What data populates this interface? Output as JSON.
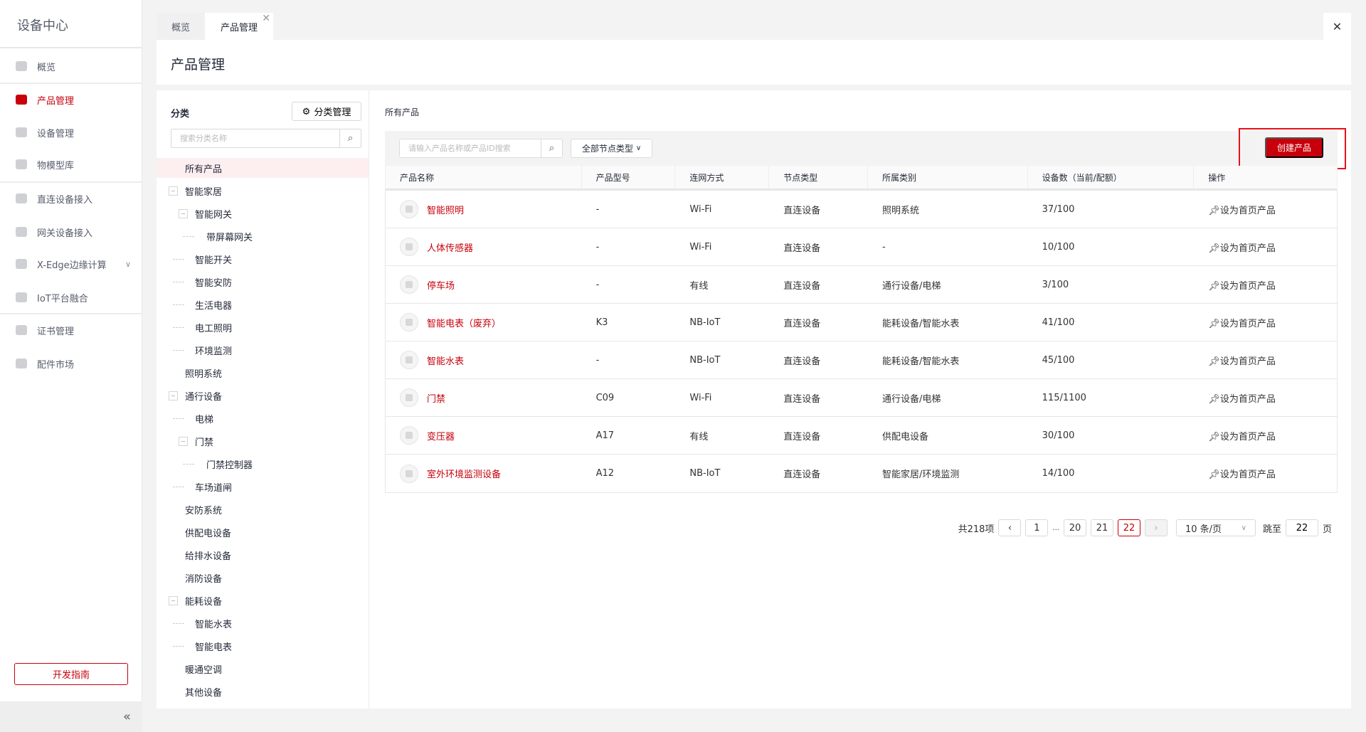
{
  "app": {
    "title": "设备中心"
  },
  "sidebar": {
    "items": [
      {
        "label": "概览",
        "icon": "cube-icon"
      },
      {
        "label": "产品管理",
        "icon": "product-cube-icon",
        "active": true
      },
      {
        "label": "设备管理",
        "icon": "device-icon"
      },
      {
        "label": "物模型库",
        "icon": "model-icon"
      },
      {
        "label": "直连设备接入",
        "icon": "direct-connect-icon"
      },
      {
        "label": "网关设备接入",
        "icon": "gateway-icon"
      },
      {
        "label": "X-Edge边缘计算",
        "icon": "edge-grid-icon",
        "expandable": true
      },
      {
        "label": "IoT平台融合",
        "icon": "monitor-icon"
      },
      {
        "label": "证书管理",
        "icon": "certificate-icon"
      },
      {
        "label": "配件市场",
        "icon": "market-icon"
      }
    ],
    "guide_label": "开发指南",
    "collapse_icon": "«"
  },
  "tabs": [
    {
      "label": "概览"
    },
    {
      "label": "产品管理",
      "closable": true
    }
  ],
  "close_all": "✕",
  "header": {
    "title": "产品管理"
  },
  "category": {
    "title": "分类",
    "manage_label": "分类管理",
    "search_placeholder": "搜索分类名称",
    "tree": [
      {
        "label": "所有产品",
        "level": 0,
        "selected": true
      },
      {
        "label": "智能家居",
        "level": 0,
        "box": true
      },
      {
        "label": "智能网关",
        "level": 1,
        "box": true
      },
      {
        "label": "带屏幕网关",
        "level": 2
      },
      {
        "label": "智能开关",
        "level": 1
      },
      {
        "label": "智能安防",
        "level": 1
      },
      {
        "label": "生活电器",
        "level": 1
      },
      {
        "label": "电工照明",
        "level": 1
      },
      {
        "label": "环境监测",
        "level": 1
      },
      {
        "label": "照明系统",
        "level": 0
      },
      {
        "label": "通行设备",
        "level": 0,
        "box": true
      },
      {
        "label": "电梯",
        "level": 1
      },
      {
        "label": "门禁",
        "level": 1,
        "box": true
      },
      {
        "label": "门禁控制器",
        "level": 2
      },
      {
        "label": "车场道闸",
        "level": 1
      },
      {
        "label": "安防系统",
        "level": 0
      },
      {
        "label": "供配电设备",
        "level": 0
      },
      {
        "label": "给排水设备",
        "level": 0
      },
      {
        "label": "消防设备",
        "level": 0
      },
      {
        "label": "能耗设备",
        "level": 0,
        "box": true
      },
      {
        "label": "智能水表",
        "level": 1
      },
      {
        "label": "智能电表",
        "level": 1
      },
      {
        "label": "暖通空调",
        "level": 0
      },
      {
        "label": "其他设备",
        "level": 0
      }
    ]
  },
  "products": {
    "label": "所有产品",
    "search_placeholder": "请输入产品名称或产品ID搜索",
    "node_type_select": "全部节点类型",
    "create_label": "创建产品",
    "columns": [
      "产品名称",
      "产品型号",
      "连网方式",
      "节点类型",
      "所属类别",
      "设备数（当前/配额）",
      "操作"
    ],
    "rows": [
      [
        "智能照明",
        "-",
        "Wi-Fi",
        "直连设备",
        "照明系统",
        "37/100",
        "设为首页产品"
      ],
      [
        "人体传感器",
        "-",
        "Wi-Fi",
        "直连设备",
        "-",
        "10/100",
        "设为首页产品"
      ],
      [
        "停车场",
        "-",
        "有线",
        "直连设备",
        "通行设备/电梯",
        "3/100",
        "设为首页产品"
      ],
      [
        "智能电表（废弃）",
        "K3",
        "NB-IoT",
        "直连设备",
        "能耗设备/智能水表",
        "41/100",
        "设为首页产品"
      ],
      [
        "智能水表",
        "-",
        "NB-IoT",
        "直连设备",
        "能耗设备/智能水表",
        "45/100",
        "设为首页产品"
      ],
      [
        "门禁",
        "C09",
        "Wi-Fi",
        "直连设备",
        "通行设备/电梯",
        "115/1100",
        "设为首页产品"
      ],
      [
        "变压器",
        "A17",
        "有线",
        "直连设备",
        "供配电设备",
        "30/100",
        "设为首页产品"
      ],
      [
        "室外环境监测设备",
        "A12",
        "NB-IoT",
        "直连设备",
        "智能家居/环境监测",
        "14/100",
        "设为首页产品"
      ]
    ]
  },
  "pagination": {
    "total": "共218项",
    "pages": [
      "1",
      "20",
      "21",
      "22"
    ],
    "ellipsis": "...",
    "current": "22",
    "page_size": "10 条/页",
    "jump_label": "跳至",
    "jump_value": "22",
    "page_unit": "页"
  },
  "colors": {
    "accent": "#c7000b",
    "highlight": "#e8101a"
  }
}
